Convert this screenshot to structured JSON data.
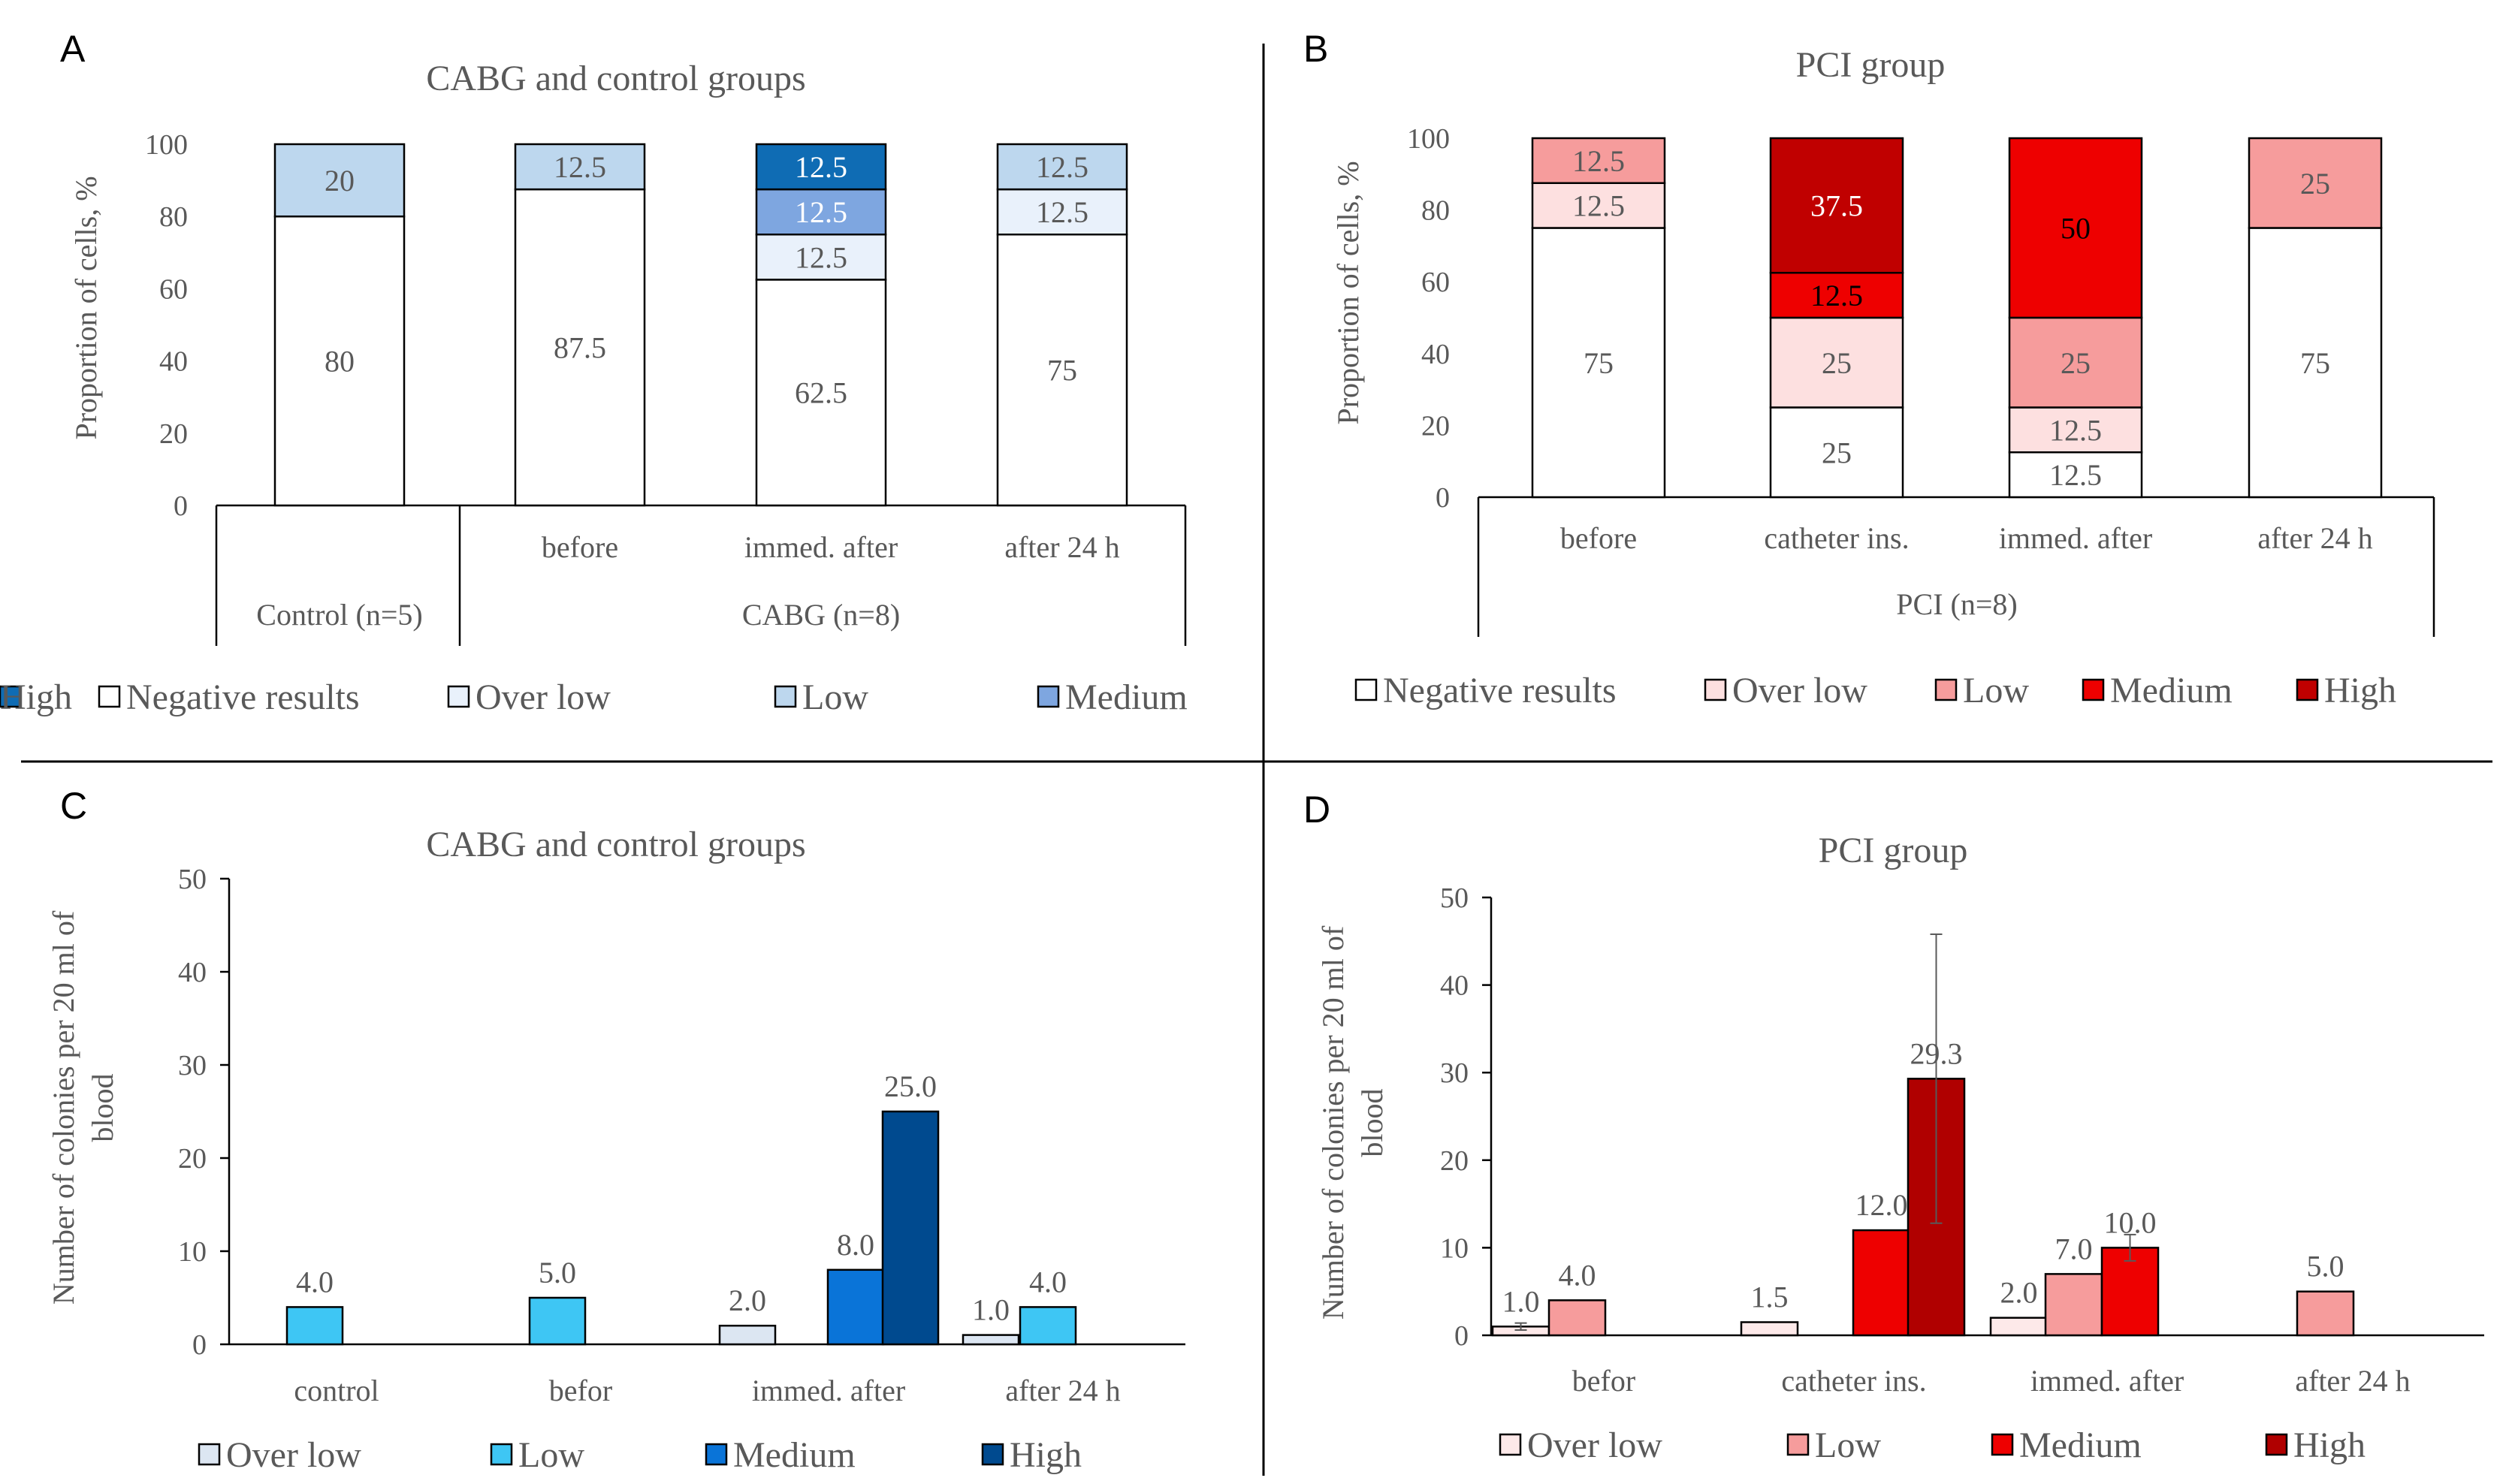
{
  "figure": {
    "dividers_color": "#000000"
  },
  "chart_data": [
    {
      "id": "A",
      "panel_label": "A",
      "type": "bar",
      "stacked": true,
      "percent": true,
      "title": "CABG and control groups",
      "ylabel": "Proportion of cells, %",
      "ylim": [
        0,
        100
      ],
      "yticks": [
        0,
        20,
        40,
        60,
        80,
        100
      ],
      "categories": [
        "",
        "before",
        "immed. after",
        "after 24 h"
      ],
      "groups": [
        {
          "label": "Control (n=5)",
          "span": [
            0,
            0
          ]
        },
        {
          "label": "CABG (n=8)",
          "span": [
            1,
            3
          ]
        }
      ],
      "series": [
        {
          "name": "Negative results",
          "color": "#ffffff",
          "values": [
            80,
            87.5,
            62.5,
            75
          ],
          "labels": [
            "80",
            "87.5",
            "62.5",
            "75"
          ],
          "text_color": "#595959"
        },
        {
          "name": "Over low",
          "color": "#e9f1fb",
          "values": [
            0,
            0,
            12.5,
            12.5
          ],
          "labels": [
            "",
            "",
            "12.5",
            "12.5"
          ],
          "text_color": "#595959"
        },
        {
          "name": "Low",
          "color": "#bdd7ee",
          "values": [
            20,
            12.5,
            0,
            12.5
          ],
          "labels": [
            "20",
            "12.5",
            "",
            "12.5"
          ],
          "text_color": "#595959"
        },
        {
          "name": "Medium",
          "color": "#7ea6e0",
          "values": [
            0,
            0,
            12.5,
            0
          ],
          "labels": [
            "",
            "",
            "12.5",
            ""
          ],
          "text_color": "#ffffff"
        },
        {
          "name": "High",
          "color": "#0f6cb4",
          "values": [
            0,
            0,
            12.5,
            0
          ],
          "labels": [
            "",
            "",
            "12.5",
            ""
          ],
          "text_color": "#ffffff"
        }
      ],
      "legend": "bottom"
    },
    {
      "id": "B",
      "panel_label": "B",
      "type": "bar",
      "stacked": true,
      "percent": true,
      "title": "PCI group",
      "ylabel": "Proportion of cells, %",
      "ylim": [
        0,
        100
      ],
      "yticks": [
        0,
        20,
        40,
        60,
        80,
        100
      ],
      "categories": [
        "before",
        "catheter ins.",
        "immed. after",
        "after 24 h"
      ],
      "groups": [
        {
          "label": "PCI (n=8)",
          "span": [
            0,
            3
          ]
        }
      ],
      "series": [
        {
          "name": "Negative results",
          "color": "#ffffff",
          "values": [
            75,
            25,
            12.5,
            75
          ],
          "labels": [
            "75",
            "25",
            "12.5",
            "75"
          ],
          "text_color": "#595959"
        },
        {
          "name": "Over low",
          "color": "#fde0e0",
          "values": [
            12.5,
            25,
            12.5,
            0
          ],
          "labels": [
            "12.5",
            "25",
            "12.5",
            ""
          ],
          "text_color": "#595959"
        },
        {
          "name": "Low",
          "color": "#f69c9c",
          "values": [
            12.5,
            0,
            25,
            25
          ],
          "labels": [
            "12.5",
            "",
            "25",
            "25"
          ],
          "text_color": "#595959"
        },
        {
          "name": "Medium",
          "color": "#ee0000",
          "values": [
            0,
            12.5,
            50,
            0
          ],
          "labels": [
            "",
            "12.5",
            "50",
            ""
          ],
          "text_color": "#000000"
        },
        {
          "name": "High",
          "color": "#c00000",
          "values": [
            0,
            37.5,
            0,
            0
          ],
          "labels": [
            "",
            "37.5",
            "",
            ""
          ],
          "text_color": "#ffffff"
        }
      ],
      "legend": "bottom"
    },
    {
      "id": "C",
      "panel_label": "C",
      "type": "bar",
      "stacked": false,
      "title": "CABG and control groups",
      "ylabel": "Number of colonies per 20 ml of blood",
      "ylabel_lines": [
        "Number of colonies per 20 ml of",
        "blood"
      ],
      "ylim": [
        0,
        50
      ],
      "yticks": [
        0,
        10,
        20,
        30,
        40,
        50
      ],
      "categories": [
        "control",
        "befor",
        "immed.  after",
        "after 24 h"
      ],
      "series": [
        {
          "name": "Over low",
          "color": "#dce6f2",
          "values": [
            null,
            null,
            2.0,
            1.0
          ]
        },
        {
          "name": "Low",
          "color": "#3ec6f4",
          "values": [
            4.0,
            5.0,
            null,
            4.0
          ]
        },
        {
          "name": "Medium",
          "color": "#0a74d8",
          "values": [
            null,
            null,
            8.0,
            null
          ]
        },
        {
          "name": "High",
          "color": "#004a8f",
          "values": [
            null,
            null,
            25.0,
            null
          ]
        }
      ],
      "value_labels": true,
      "legend": "bottom"
    },
    {
      "id": "D",
      "panel_label": "D",
      "type": "bar",
      "stacked": false,
      "title": "PCI group",
      "ylabel": "Number of colonies per 20 ml of blood",
      "ylabel_lines": [
        "Number of colonies per 20 ml of",
        "blood"
      ],
      "ylim": [
        0,
        50
      ],
      "yticks": [
        0,
        10,
        20,
        30,
        40,
        50
      ],
      "categories": [
        "befor",
        "catheter ins.",
        "immed. after",
        "after 24 h"
      ],
      "series": [
        {
          "name": "Over low",
          "color": "#fde9e9",
          "values": [
            1.0,
            1.5,
            2.0,
            null
          ],
          "errors": [
            0.4,
            null,
            null,
            null
          ]
        },
        {
          "name": "Low",
          "color": "#f69c9c",
          "values": [
            4.0,
            null,
            7.0,
            5.0
          ],
          "errors": [
            null,
            null,
            null,
            null
          ]
        },
        {
          "name": "Medium",
          "color": "#ee0000",
          "values": [
            null,
            12.0,
            10.0,
            null
          ],
          "errors": [
            null,
            null,
            1.5,
            null
          ]
        },
        {
          "name": "High",
          "color": "#b00000",
          "values": [
            null,
            29.3,
            null,
            null
          ],
          "errors": [
            null,
            16.5,
            null,
            null
          ]
        }
      ],
      "value_labels": true,
      "legend": "bottom"
    }
  ]
}
